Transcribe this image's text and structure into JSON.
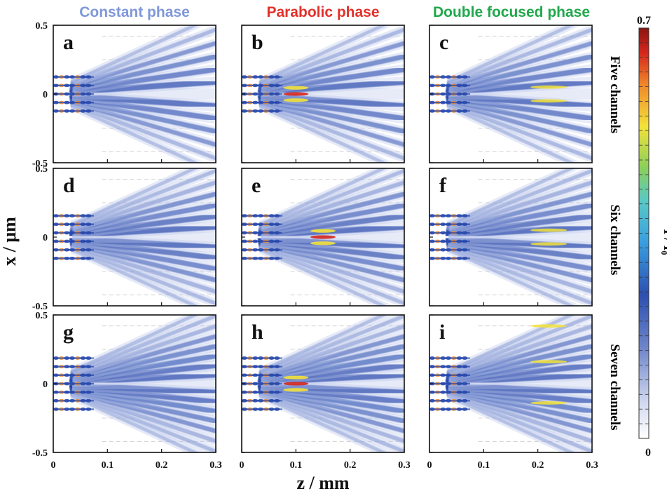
{
  "chart_data": {
    "type": "heatmap",
    "column_titles": [
      {
        "text": "Constant phase",
        "color": "#7f97d9"
      },
      {
        "text": "Parabolic phase",
        "color": "#e3312a"
      },
      {
        "text": "Double focused phase",
        "color": "#1fa84b"
      }
    ],
    "row_labels": [
      "Five channels",
      "Six channels",
      "Seven channels"
    ],
    "xlabel": "z / mm",
    "ylabel": "x / μm",
    "x_ticks": [
      "0",
      "0.1",
      "0.2",
      "0.3"
    ],
    "y_ticks": [
      "0.5",
      "0",
      "-0.5"
    ],
    "xlim": [
      0,
      0.3
    ],
    "ylim": [
      -0.5,
      0.5
    ],
    "colorbar": {
      "label": "I / I₀",
      "min": "0",
      "max": "0.7",
      "colormap": "jet (white at zero)"
    },
    "panels": [
      {
        "letter": "a",
        "row": 0,
        "col": 0,
        "channels": 5,
        "phase": "constant"
      },
      {
        "letter": "b",
        "row": 0,
        "col": 1,
        "channels": 5,
        "phase": "parabolic"
      },
      {
        "letter": "c",
        "row": 0,
        "col": 2,
        "channels": 5,
        "phase": "double"
      },
      {
        "letter": "d",
        "row": 1,
        "col": 0,
        "channels": 6,
        "phase": "constant"
      },
      {
        "letter": "e",
        "row": 1,
        "col": 1,
        "channels": 6,
        "phase": "parabolic"
      },
      {
        "letter": "f",
        "row": 1,
        "col": 2,
        "channels": 6,
        "phase": "double"
      },
      {
        "letter": "g",
        "row": 2,
        "col": 0,
        "channels": 7,
        "phase": "constant"
      },
      {
        "letter": "h",
        "row": 2,
        "col": 1,
        "channels": 7,
        "phase": "parabolic"
      },
      {
        "letter": "i",
        "row": 2,
        "col": 2,
        "channels": 7,
        "phase": "double"
      }
    ]
  }
}
